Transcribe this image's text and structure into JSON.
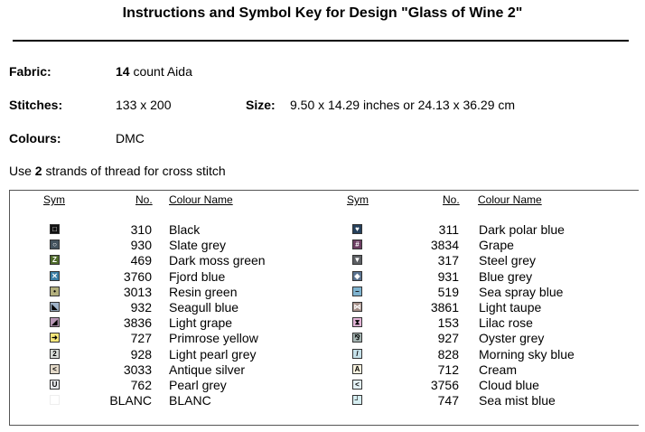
{
  "title": "Instructions and Symbol Key for Design \"Glass of Wine 2\"",
  "fabric": {
    "label": "Fabric:",
    "count": "14",
    "rest": " count Aida"
  },
  "stitches": {
    "label": "Stitches:",
    "value": "133 x 200"
  },
  "size": {
    "label": "Size:",
    "value": "9.50 x 14.29 inches or 24.13 x 36.29 cm"
  },
  "colours": {
    "label": "Colours:",
    "value": "DMC"
  },
  "strands": {
    "pre": "Use ",
    "num": "2",
    "post": " strands of thread for cross stitch"
  },
  "headers": {
    "sym": "Sym",
    "no": "No.",
    "name": "Colour Name"
  },
  "left": [
    {
      "no": "310",
      "name": "Black",
      "color": "#111111",
      "glyph": "□",
      "fg": "#ffffff"
    },
    {
      "no": "930",
      "name": "Slate grey",
      "color": "#45545f",
      "glyph": "○",
      "fg": "#ffffff"
    },
    {
      "no": "469",
      "name": "Dark moss green",
      "color": "#4f6b2b",
      "glyph": "Z",
      "fg": "#ffffff"
    },
    {
      "no": "3760",
      "name": "Fjord blue",
      "color": "#3b7fa6",
      "glyph": "✕",
      "fg": "#ffffff"
    },
    {
      "no": "3013",
      "name": "Resin green",
      "color": "#b3b07e",
      "glyph": "•",
      "fg": "#000000"
    },
    {
      "no": "932",
      "name": "Seagull blue",
      "color": "#9fb3c8",
      "glyph": "◣",
      "fg": "#000000"
    },
    {
      "no": "3836",
      "name": "Light grape",
      "color": "#b897b6",
      "glyph": "◢",
      "fg": "#000000"
    },
    {
      "no": "727",
      "name": "Primrose yellow",
      "color": "#f5e67a",
      "glyph": "➜",
      "fg": "#000000"
    },
    {
      "no": "928",
      "name": "Light pearl grey",
      "color": "#d8dcd8",
      "glyph": "2",
      "fg": "#000000"
    },
    {
      "no": "3033",
      "name": "Antique silver",
      "color": "#e3d9c8",
      "glyph": "<",
      "fg": "#000000"
    },
    {
      "no": "762",
      "name": "Pearl grey",
      "color": "#e7e9ec",
      "glyph": "U",
      "fg": "#000000"
    },
    {
      "no": "BLANC",
      "name": "BLANC",
      "color": "#ffffff",
      "glyph": "",
      "fg": "#000000"
    }
  ],
  "right": [
    {
      "no": "311",
      "name": "Dark polar blue",
      "color": "#25405b",
      "glyph": "♥",
      "fg": "#ffffff"
    },
    {
      "no": "3834",
      "name": "Grape",
      "color": "#6d3e63",
      "glyph": "#",
      "fg": "#ffffff"
    },
    {
      "no": "317",
      "name": "Steel grey",
      "color": "#5c5f63",
      "glyph": "▼",
      "fg": "#ffffff"
    },
    {
      "no": "931",
      "name": "Blue grey",
      "color": "#5a7391",
      "glyph": "◆",
      "fg": "#ffffff"
    },
    {
      "no": "519",
      "name": "Sea spray blue",
      "color": "#7fb3cf",
      "glyph": "–",
      "fg": "#000000"
    },
    {
      "no": "3861",
      "name": "Light taupe",
      "color": "#a69089",
      "glyph": "⋈",
      "fg": "#ffffff"
    },
    {
      "no": "153",
      "name": "Lilac rose",
      "color": "#e2b4d6",
      "glyph": "⧗",
      "fg": "#000000"
    },
    {
      "no": "927",
      "name": "Oyster grey",
      "color": "#a5b5b3",
      "glyph": "⅋",
      "fg": "#000000"
    },
    {
      "no": "828",
      "name": "Morning sky blue",
      "color": "#c6e1ea",
      "glyph": "/",
      "fg": "#000000"
    },
    {
      "no": "712",
      "name": "Cream",
      "color": "#faf3df",
      "glyph": "A",
      "fg": "#000000"
    },
    {
      "no": "3756",
      "name": "Cloud blue",
      "color": "#e3f1f6",
      "glyph": "<",
      "fg": "#000000"
    },
    {
      "no": "747",
      "name": "Sea mist blue",
      "color": "#d6eef1",
      "glyph": "┘",
      "fg": "#000000"
    }
  ]
}
